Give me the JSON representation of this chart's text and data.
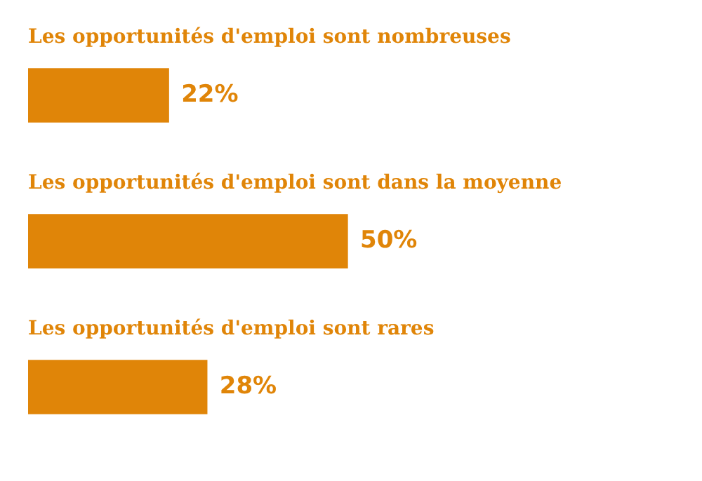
{
  "chart_data": {
    "type": "bar",
    "orientation": "horizontal",
    "categories": [
      "Les opportunités d'emploi sont nombreuses",
      "Les opportunités d'emploi sont dans la moyenne",
      "Les opportunités d'emploi sont rares"
    ],
    "values": [
      22,
      50,
      28
    ],
    "color": "#e08508",
    "value_labels": [
      "22%",
      "50%",
      "28%"
    ]
  }
}
